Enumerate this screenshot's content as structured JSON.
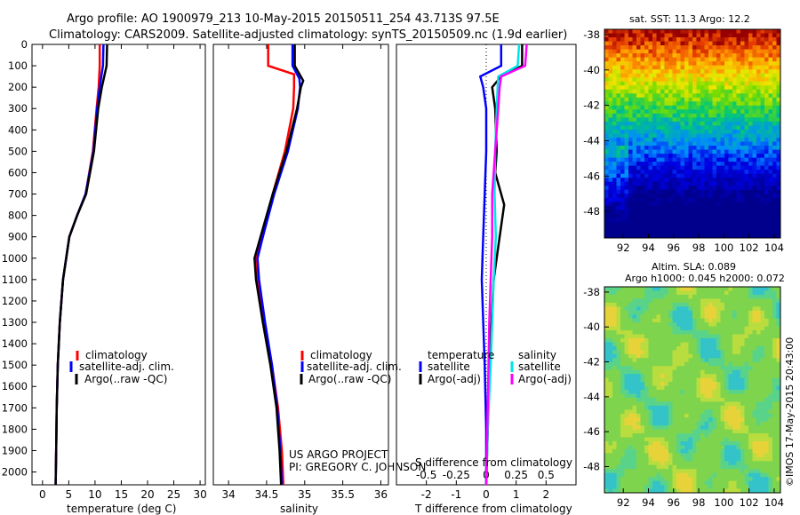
{
  "header": {
    "line1": "Argo profile: AO 1900979_213 10-May-2015 20150511_254 43.713S 97.5E",
    "line2": "Climatology: CARS2009. Satellite-adjusted climatology: synTS_20150509.nc (1.9d earlier)"
  },
  "credit": {
    "project": "US ARGO PROJECT",
    "pi": "PI: GREGORY C. JOHNSON",
    "watermark": "©IMOS 17-May-2015 20:43:00"
  },
  "colors": {
    "climatology": "#ff0000",
    "satellite": "#0000ff",
    "argo": "#000000",
    "sal_satellite": "#00e5e5",
    "sal_argo": "#ff00ff"
  },
  "chart_data": [
    {
      "type": "line",
      "xlabel": "temperature (deg C)",
      "ylabel": "",
      "xlim": [
        -2,
        31
      ],
      "ylim": [
        2060,
        0
      ],
      "xticks": [
        "0",
        "5",
        "10",
        "15",
        "20",
        "25",
        "30"
      ],
      "yticks": [
        "0",
        "100",
        "200",
        "300",
        "400",
        "500",
        "600",
        "700",
        "800",
        "900",
        "1000",
        "1100",
        "1200",
        "1300",
        "1400",
        "1500",
        "1600",
        "1700",
        "1800",
        "1900",
        "2000"
      ],
      "legend": [
        "climatology",
        "satellite-adj. clim.",
        "Argo(..raw -QC)"
      ],
      "series": [
        {
          "name": "climatology",
          "x": [
            10.9,
            10.9,
            10.7,
            10.3,
            9.6,
            8.2,
            6.6,
            5.1,
            3.9,
            3.3,
            2.9,
            2.7,
            2.6,
            2.5
          ],
          "y": [
            0,
            100,
            200,
            300,
            500,
            700,
            800,
            900,
            1100,
            1300,
            1500,
            1700,
            1900,
            2060
          ]
        },
        {
          "name": "satellite-adj. clim.",
          "x": [
            11.6,
            11.5,
            10.9,
            10.4,
            9.7,
            8.2,
            6.6,
            5.1,
            3.9,
            3.3,
            2.9,
            2.7,
            2.6,
            2.5
          ],
          "y": [
            0,
            100,
            200,
            300,
            500,
            700,
            800,
            900,
            1100,
            1300,
            1500,
            1700,
            1900,
            2060
          ]
        },
        {
          "name": "Argo(..raw -QC)",
          "x": [
            12.3,
            12.2,
            11.3,
            10.6,
            9.8,
            8.3,
            6.6,
            5.1,
            3.9,
            3.3,
            2.9,
            2.7,
            2.6,
            2.5
          ],
          "y": [
            0,
            100,
            200,
            300,
            500,
            700,
            800,
            900,
            1100,
            1300,
            1500,
            1700,
            1900,
            2060
          ]
        }
      ]
    },
    {
      "type": "line",
      "xlabel": "salinity",
      "ylabel": "",
      "xlim": [
        33.8,
        36.1
      ],
      "ylim": [
        2060,
        0
      ],
      "xticks": [
        "34",
        "34.5",
        "35",
        "35.5",
        "36"
      ],
      "legend": [
        "climatology",
        "satellite-adj. clim.",
        "Argo(..raw -QC)"
      ],
      "series": [
        {
          "name": "climatology",
          "x": [
            34.52,
            34.52,
            34.86,
            34.86,
            34.85,
            34.74,
            34.58,
            34.45,
            34.36,
            34.38,
            34.47,
            34.57,
            34.65,
            34.7,
            34.72
          ],
          "y": [
            0,
            100,
            140,
            200,
            300,
            500,
            700,
            900,
            1000,
            1100,
            1300,
            1500,
            1700,
            1900,
            2060
          ]
        },
        {
          "name": "satellite-adj. clim.",
          "x": [
            34.84,
            34.84,
            34.93,
            34.94,
            34.91,
            34.78,
            34.6,
            34.45,
            34.38,
            34.4,
            34.48,
            34.57,
            34.64,
            34.68,
            34.7
          ],
          "y": [
            0,
            100,
            160,
            200,
            300,
            500,
            700,
            900,
            1000,
            1100,
            1300,
            1500,
            1700,
            1900,
            2060
          ]
        },
        {
          "name": "Argo(..raw -QC)",
          "x": [
            34.87,
            34.87,
            34.98,
            34.95,
            34.9,
            34.76,
            34.58,
            34.42,
            34.34,
            34.36,
            34.45,
            34.55,
            34.63,
            34.67,
            34.69
          ],
          "y": [
            0,
            100,
            170,
            200,
            300,
            500,
            700,
            900,
            1000,
            1100,
            1300,
            1500,
            1700,
            1900,
            2060
          ]
        }
      ]
    },
    {
      "type": "line",
      "xlabel": "T difference from climatology",
      "ylabel": "",
      "xlim": [
        -3,
        3
      ],
      "ylim": [
        2060,
        0
      ],
      "xticks_T": [
        "-2",
        "-1",
        "0",
        "1",
        "2"
      ],
      "xticks_S": [
        "-0.5",
        "-0.25",
        "0",
        "0.25",
        "0.5"
      ],
      "s_axis_label": "S difference from climatology",
      "legend_headers": [
        "temperature",
        "salinity"
      ],
      "legend": [
        "satellite",
        "Argo(-adj)",
        "satellite",
        "Argo(-adj)"
      ],
      "series": [
        {
          "name": "satellite",
          "x": [
            0.5,
            0.5,
            -0.2,
            -0.1,
            0.0,
            0.0,
            -0.05,
            -0.1,
            -0.15,
            -0.05,
            0.0,
            0.0
          ],
          "y": [
            0,
            100,
            150,
            200,
            300,
            500,
            700,
            900,
            1100,
            1500,
            1800,
            2060
          ]
        },
        {
          "name": "Argo(-adj)",
          "x": [
            1.2,
            1.2,
            0.5,
            0.2,
            0.3,
            0.35,
            0.3,
            0.6,
            0.45,
            0.25,
            0.1,
            0.05,
            0.0
          ],
          "y": [
            0,
            100,
            150,
            200,
            300,
            500,
            600,
            750,
            900,
            1100,
            1500,
            1800,
            2060
          ]
        },
        {
          "name": "satellite",
          "x": [
            1.1,
            1.05,
            0.4,
            0.38,
            0.35,
            0.3,
            0.28,
            0.32,
            0.25,
            0.15,
            0.05,
            0.0
          ],
          "y": [
            0,
            100,
            150,
            200,
            300,
            500,
            700,
            900,
            1100,
            1500,
            1800,
            2060
          ]
        },
        {
          "name": "Argo(-adj)",
          "x": [
            1.35,
            1.3,
            0.5,
            0.45,
            0.4,
            0.3,
            0.2,
            0.2,
            0.1,
            0.05,
            0.0
          ],
          "y": [
            0,
            100,
            150,
            200,
            300,
            500,
            700,
            900,
            1300,
            1700,
            2060
          ]
        }
      ]
    },
    {
      "type": "heatmap",
      "title": "sat. SST: 11.3 Argo: 12.2",
      "xlim": [
        90.5,
        104.5
      ],
      "ylim": [
        -49.5,
        -37.7
      ],
      "xticks": [
        "92",
        "94",
        "96",
        "98",
        "100",
        "102",
        "104"
      ],
      "yticks": [
        "-38",
        "-40",
        "-42",
        "-44",
        "-46",
        "-48"
      ]
    },
    {
      "type": "heatmap",
      "title_line1": "Altim. SLA: 0.089",
      "title_line2": "Argo h1000: 0.045 h2000: 0.072",
      "xlim": [
        90.5,
        104.5
      ],
      "ylim": [
        -49.5,
        -37.7
      ],
      "xticks": [
        "92",
        "94",
        "96",
        "98",
        "100",
        "102",
        "104"
      ],
      "yticks": [
        "-38",
        "-40",
        "-42",
        "-44",
        "-46",
        "-48"
      ]
    }
  ]
}
